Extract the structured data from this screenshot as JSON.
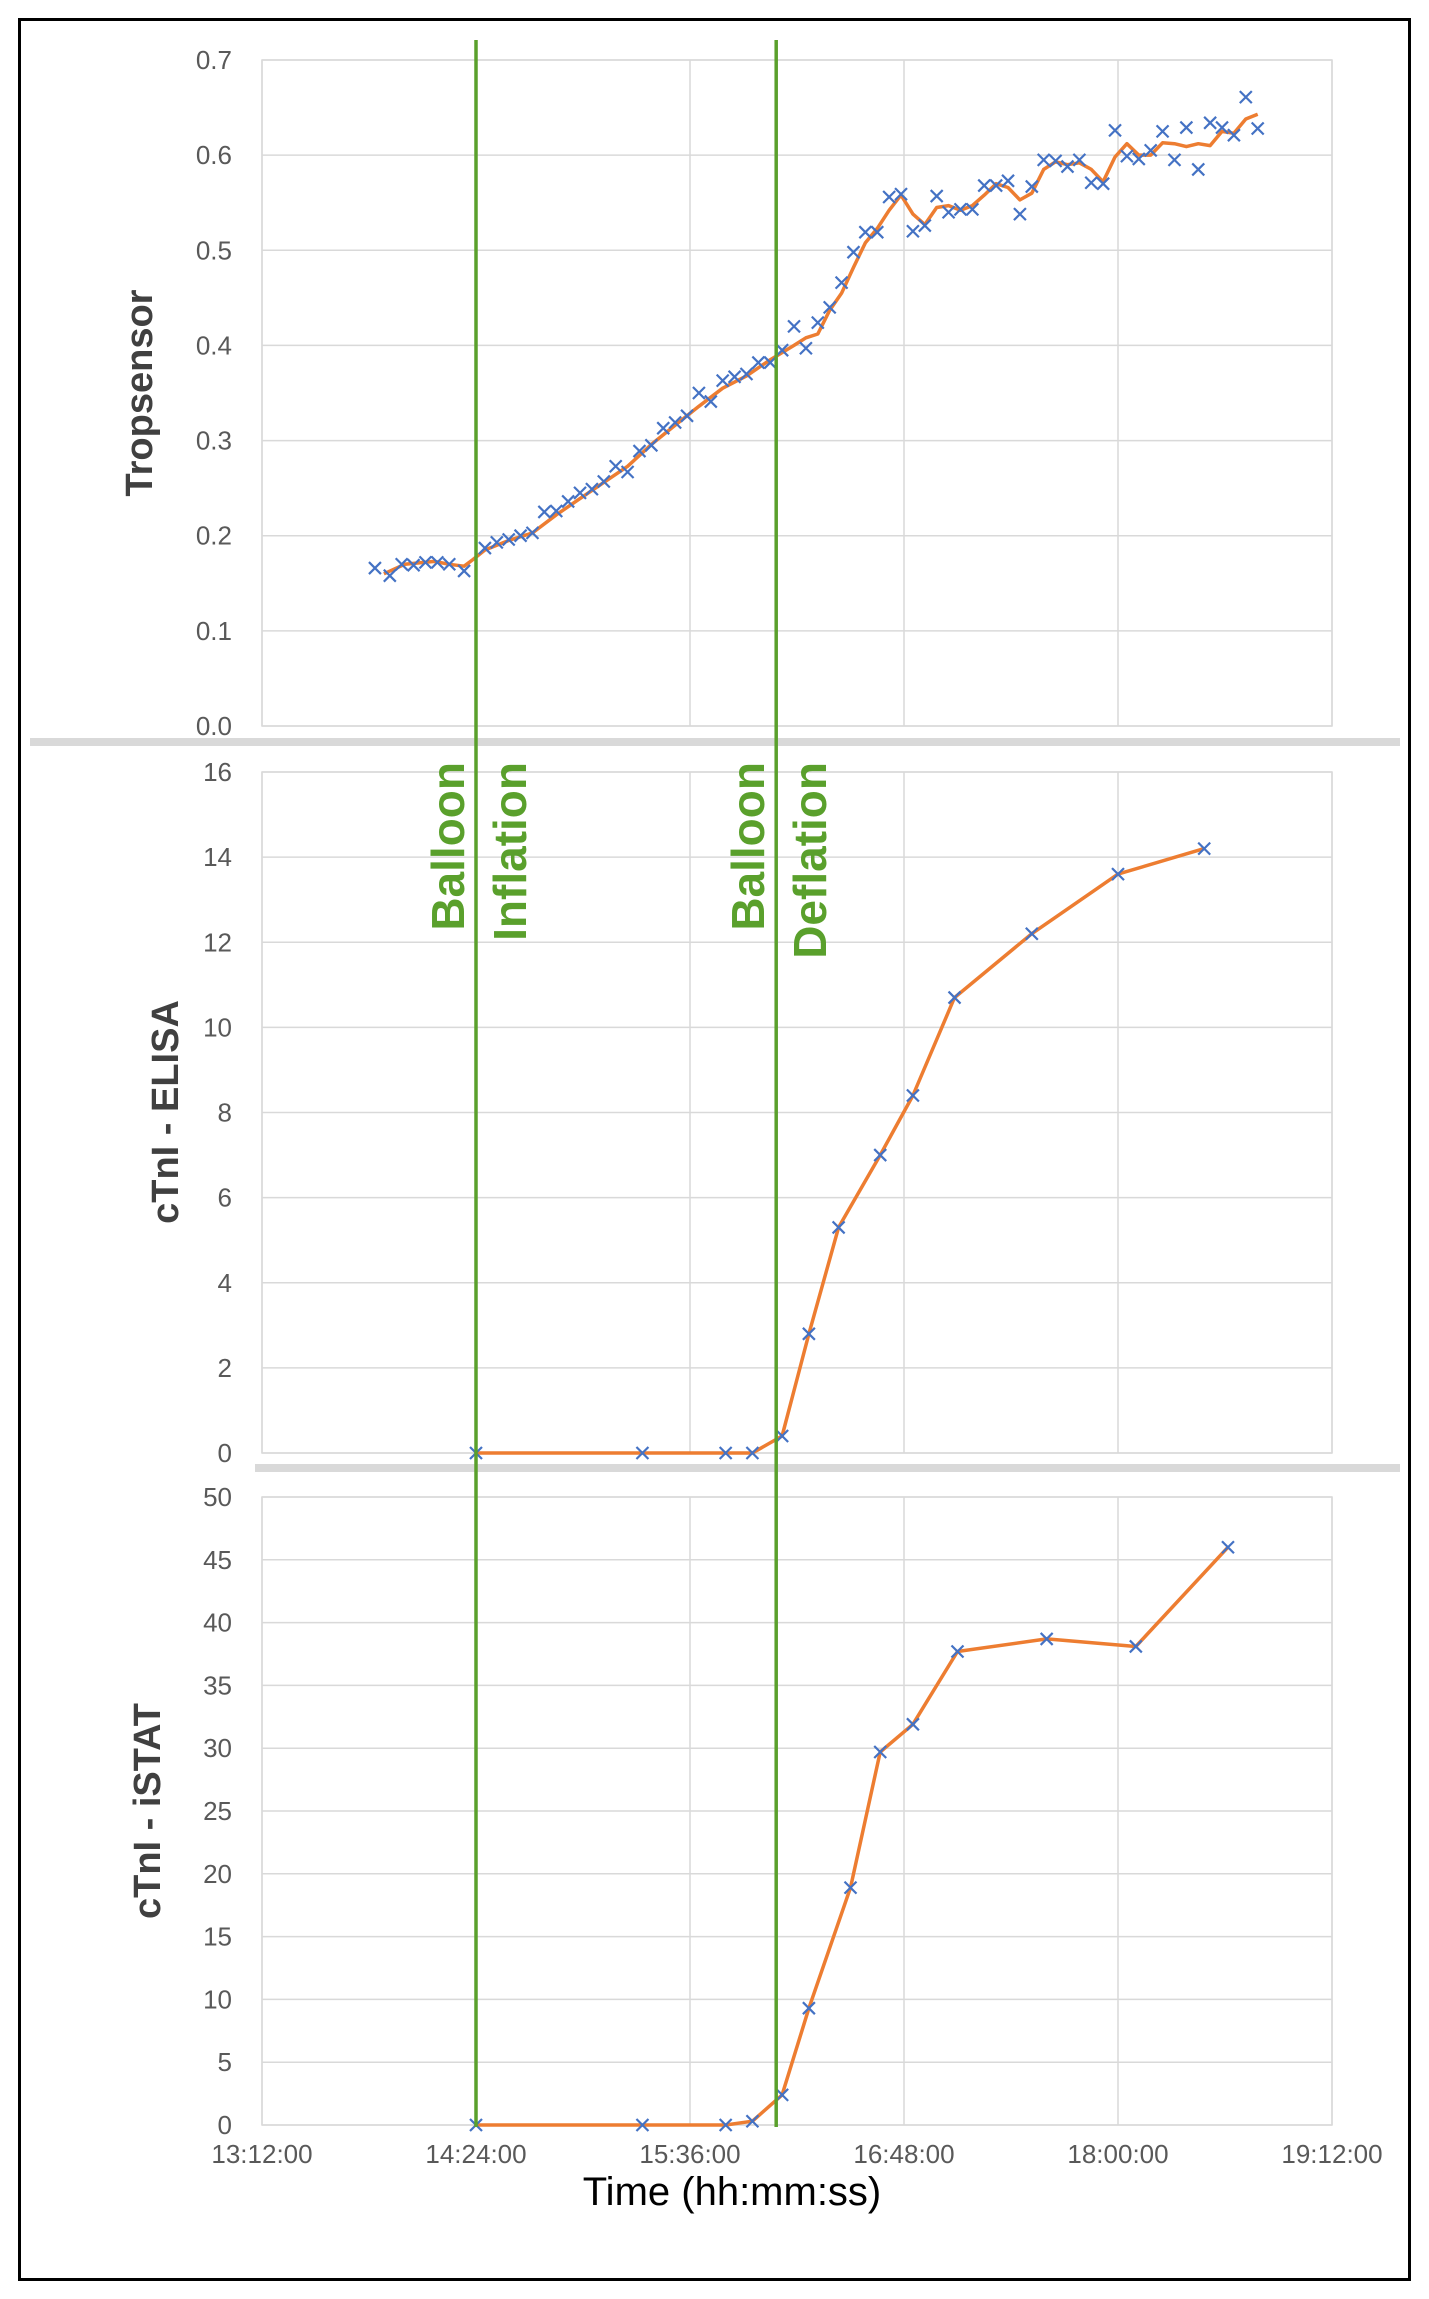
{
  "chart_data": [
    {
      "type": "scatter",
      "ylabel": "Tropsensor",
      "ylim": [
        0,
        0.7
      ],
      "yticks": [
        "0.0",
        "0.1",
        "0.2",
        "0.3",
        "0.4",
        "0.5",
        "0.6",
        "0.7"
      ],
      "xlim": [
        "13:12:00",
        "19:12:00"
      ],
      "grid": true,
      "marker_color": "#4472c4",
      "line_color": "#ed7d31",
      "points": [
        [
          "13:50:00",
          0.166
        ],
        [
          "13:55:00",
          0.158
        ],
        [
          "13:59:00",
          0.17
        ],
        [
          "14:03:00",
          0.169
        ],
        [
          "14:07:00",
          0.172
        ],
        [
          "14:11:00",
          0.172
        ],
        [
          "14:15:00",
          0.17
        ],
        [
          "14:20:00",
          0.163
        ],
        [
          "14:27:00",
          0.187
        ],
        [
          "14:31:00",
          0.193
        ],
        [
          "14:35:00",
          0.196
        ],
        [
          "14:39:00",
          0.2
        ],
        [
          "14:43:00",
          0.203
        ],
        [
          "14:47:00",
          0.225
        ],
        [
          "14:51:00",
          0.226
        ],
        [
          "14:55:00",
          0.236
        ],
        [
          "14:59:00",
          0.245
        ],
        [
          "15:03:00",
          0.249
        ],
        [
          "15:07:00",
          0.257
        ],
        [
          "15:11:00",
          0.273
        ],
        [
          "15:15:00",
          0.267
        ],
        [
          "15:19:00",
          0.289
        ],
        [
          "15:23:00",
          0.295
        ],
        [
          "15:27:00",
          0.313
        ],
        [
          "15:31:00",
          0.319
        ],
        [
          "15:35:00",
          0.326
        ],
        [
          "15:39:00",
          0.35
        ],
        [
          "15:43:00",
          0.341
        ],
        [
          "15:47:00",
          0.363
        ],
        [
          "15:51:00",
          0.367
        ],
        [
          "15:55:00",
          0.37
        ],
        [
          "15:59:00",
          0.382
        ],
        [
          "16:03:00",
          0.382
        ],
        [
          "16:07:00",
          0.395
        ],
        [
          "16:11:00",
          0.42
        ],
        [
          "16:15:00",
          0.397
        ],
        [
          "16:19:00",
          0.424
        ],
        [
          "16:23:00",
          0.44
        ],
        [
          "16:27:00",
          0.466
        ],
        [
          "16:31:00",
          0.498
        ],
        [
          "16:35:00",
          0.519
        ],
        [
          "16:39:00",
          0.519
        ],
        [
          "16:43:00",
          0.556
        ],
        [
          "16:47:00",
          0.559
        ],
        [
          "16:51:00",
          0.52
        ],
        [
          "16:55:00",
          0.526
        ],
        [
          "16:59:00",
          0.557
        ],
        [
          "17:03:00",
          0.54
        ],
        [
          "17:07:00",
          0.543
        ],
        [
          "17:11:00",
          0.543
        ],
        [
          "17:15:00",
          0.568
        ],
        [
          "17:19:00",
          0.568
        ],
        [
          "17:23:00",
          0.573
        ],
        [
          "17:27:00",
          0.538
        ],
        [
          "17:31:00",
          0.567
        ],
        [
          "17:35:00",
          0.595
        ],
        [
          "17:39:00",
          0.594
        ],
        [
          "17:43:00",
          0.588
        ],
        [
          "17:47:00",
          0.595
        ],
        [
          "17:51:00",
          0.571
        ],
        [
          "17:55:00",
          0.57
        ],
        [
          "17:59:00",
          0.626
        ],
        [
          "18:03:00",
          0.599
        ],
        [
          "18:07:00",
          0.596
        ],
        [
          "18:11:00",
          0.605
        ],
        [
          "18:15:00",
          0.625
        ],
        [
          "18:19:00",
          0.595
        ],
        [
          "18:23:00",
          0.629
        ],
        [
          "18:27:00",
          0.585
        ],
        [
          "18:31:00",
          0.634
        ],
        [
          "18:35:00",
          0.629
        ],
        [
          "18:39:00",
          0.621
        ],
        [
          "18:43:00",
          0.661
        ],
        [
          "18:47:00",
          0.628
        ]
      ],
      "trend": [
        [
          "13:53:00",
          0.16
        ],
        [
          "14:00:00",
          0.17
        ],
        [
          "14:10:00",
          0.173
        ],
        [
          "14:15:00",
          0.17
        ],
        [
          "14:20:00",
          0.168
        ],
        [
          "14:23:00",
          0.175
        ],
        [
          "14:27:00",
          0.185
        ],
        [
          "14:35:00",
          0.195
        ],
        [
          "14:43:00",
          0.203
        ],
        [
          "14:51:00",
          0.222
        ],
        [
          "14:59:00",
          0.239
        ],
        [
          "15:07:00",
          0.256
        ],
        [
          "15:15:00",
          0.273
        ],
        [
          "15:23:00",
          0.296
        ],
        [
          "15:31:00",
          0.316
        ],
        [
          "15:39:00",
          0.336
        ],
        [
          "15:47:00",
          0.355
        ],
        [
          "15:55:00",
          0.368
        ],
        [
          "16:03:00",
          0.385
        ],
        [
          "16:11:00",
          0.4
        ],
        [
          "16:15:00",
          0.408
        ],
        [
          "16:19:00",
          0.412
        ],
        [
          "16:23:00",
          0.437
        ],
        [
          "16:27:00",
          0.455
        ],
        [
          "16:31:00",
          0.482
        ],
        [
          "16:35:00",
          0.508
        ],
        [
          "16:39:00",
          0.523
        ],
        [
          "16:43:00",
          0.542
        ],
        [
          "16:47:00",
          0.558
        ],
        [
          "16:51:00",
          0.538
        ],
        [
          "16:55:00",
          0.527
        ],
        [
          "16:59:00",
          0.545
        ],
        [
          "17:03:00",
          0.547
        ],
        [
          "17:07:00",
          0.542
        ],
        [
          "17:11:00",
          0.547
        ],
        [
          "17:15:00",
          0.558
        ],
        [
          "17:19:00",
          0.57
        ],
        [
          "17:23:00",
          0.566
        ],
        [
          "17:27:00",
          0.553
        ],
        [
          "17:31:00",
          0.56
        ],
        [
          "17:35:00",
          0.585
        ],
        [
          "17:39:00",
          0.593
        ],
        [
          "17:43:00",
          0.59
        ],
        [
          "17:47:00",
          0.592
        ],
        [
          "17:51:00",
          0.585
        ],
        [
          "17:55:00",
          0.572
        ],
        [
          "17:59:00",
          0.598
        ],
        [
          "18:03:00",
          0.612
        ],
        [
          "18:07:00",
          0.6
        ],
        [
          "18:11:00",
          0.6
        ],
        [
          "18:15:00",
          0.613
        ],
        [
          "18:19:00",
          0.612
        ],
        [
          "18:23:00",
          0.609
        ],
        [
          "18:27:00",
          0.612
        ],
        [
          "18:31:00",
          0.61
        ],
        [
          "18:35:00",
          0.625
        ],
        [
          "18:39:00",
          0.623
        ],
        [
          "18:43:00",
          0.638
        ],
        [
          "18:47:00",
          0.643
        ]
      ]
    },
    {
      "type": "line",
      "ylabel": "cTnI - ELISA",
      "ylim": [
        0,
        16
      ],
      "yticks": [
        "0",
        "2",
        "4",
        "6",
        "8",
        "10",
        "12",
        "14",
        "16"
      ],
      "xlim": [
        "13:12:00",
        "19:12:00"
      ],
      "grid": true,
      "marker_color": "#4472c4",
      "line_color": "#ed7d31",
      "points": [
        [
          "14:24:00",
          0
        ],
        [
          "15:20:00",
          0
        ],
        [
          "15:48:00",
          0
        ],
        [
          "15:57:00",
          0
        ],
        [
          "16:07:00",
          0.4
        ],
        [
          "16:16:00",
          2.8
        ],
        [
          "16:26:00",
          5.3
        ],
        [
          "16:40:00",
          7.0
        ],
        [
          "16:51:00",
          8.4
        ],
        [
          "17:05:00",
          10.7
        ],
        [
          "17:31:00",
          12.2
        ],
        [
          "18:00:00",
          13.6
        ],
        [
          "18:29:00",
          14.2
        ]
      ]
    },
    {
      "type": "line",
      "ylabel": "cTnI - iSTAT",
      "xlabel": "Time (hh:mm:ss)",
      "ylim": [
        0,
        50
      ],
      "yticks": [
        "0",
        "5",
        "10",
        "15",
        "20",
        "25",
        "30",
        "35",
        "40",
        "45",
        "50"
      ],
      "xlim": [
        "13:12:00",
        "19:12:00"
      ],
      "xticks": [
        "13:12:00",
        "14:24:00",
        "15:36:00",
        "16:48:00",
        "18:00:00",
        "19:12:00"
      ],
      "grid": true,
      "marker_color": "#4472c4",
      "line_color": "#ed7d31",
      "points": [
        [
          "14:24:00",
          0
        ],
        [
          "15:20:00",
          0
        ],
        [
          "15:48:00",
          0
        ],
        [
          "15:57:00",
          0.3
        ],
        [
          "16:07:00",
          2.4
        ],
        [
          "16:16:00",
          9.3
        ],
        [
          "16:30:00",
          18.9
        ],
        [
          "16:40:00",
          29.7
        ],
        [
          "16:51:00",
          31.9
        ],
        [
          "17:06:00",
          37.7
        ],
        [
          "17:36:00",
          38.7
        ],
        [
          "18:06:00",
          38.1
        ],
        [
          "18:37:00",
          46.0
        ]
      ]
    }
  ],
  "annotations": {
    "line_color": "#5aa02c",
    "events": [
      {
        "time": "14:24:00",
        "line1": "Balloon",
        "line2": "Inflation"
      },
      {
        "time": "16:05:00",
        "line1": "Balloon",
        "line2": "Deflation"
      }
    ]
  }
}
